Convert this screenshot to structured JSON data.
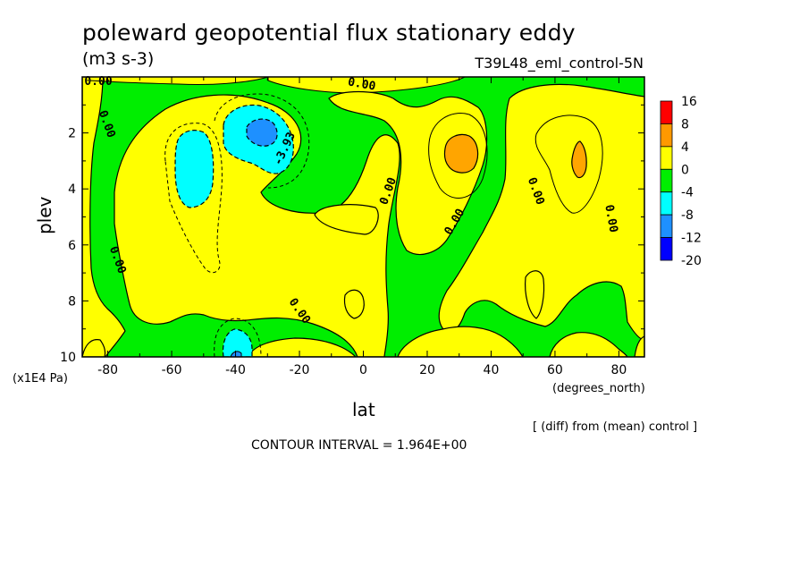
{
  "title": "poleward geopotential flux stationary eddy",
  "units": "(m3 s-3)",
  "run": "T39L48_eml_control-5N",
  "chart_data": {
    "type": "heatmap",
    "title": "poleward geopotential flux stationary eddy",
    "xlabel": "lat",
    "x_unit": "(degrees_north)",
    "ylabel": "plev",
    "y_unit": "(x1E4 Pa)",
    "xlim": [
      -88,
      88
    ],
    "ylim": [
      0,
      10
    ],
    "y_inverted": true,
    "x_ticks": [
      -80,
      -60,
      -40,
      -20,
      0,
      20,
      40,
      60,
      80
    ],
    "x_tick_labels": [
      "-80",
      "-60",
      "-40",
      "-20",
      "0",
      "20",
      "40",
      "60",
      "80"
    ],
    "y_ticks": [
      2,
      4,
      6,
      8,
      10
    ],
    "y_tick_labels": [
      "2",
      "4",
      "6",
      "8",
      "10"
    ],
    "colorbar": {
      "levels": [
        "16",
        "8",
        "4",
        "0",
        "-4",
        "-8",
        "-12",
        "-20"
      ],
      "colors": [
        "#ff0000",
        "#ff9900",
        "#ffff00",
        "#00ee00",
        "#00ffff",
        "#1e90ff",
        "#0000ff"
      ]
    },
    "contour_labels": [
      "0.00",
      "-3.93"
    ],
    "colors": {
      "negative_small": "#00ee00",
      "positive_small": "#ffff00",
      "positive_mid": "#ffa500",
      "negative_mid": "#00ffff",
      "negative_strong": "#1e90ff"
    }
  },
  "labels": {
    "ylabel": "plev",
    "yunit": "(x1E4 Pa)",
    "xlabel": "lat",
    "xunit": "(degrees_north)",
    "note": "[ (diff) from (mean) control ]",
    "contour_interval": "CONTOUR INTERVAL = 1.964E+00"
  }
}
